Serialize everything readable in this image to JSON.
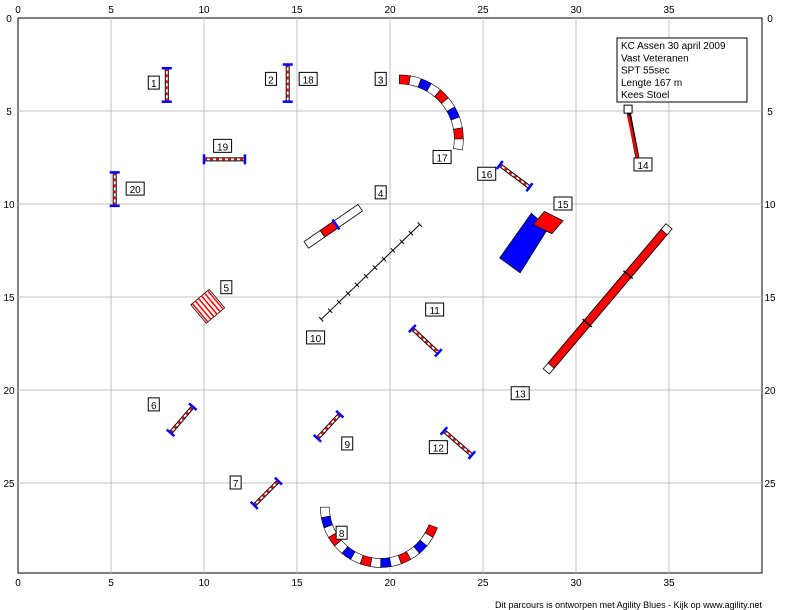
{
  "info": {
    "lines": [
      "KC Assen 30 april 2009",
      "Vast Veteranen",
      "SPT 55sec",
      "Lengte 167 m",
      "Kees Stoel"
    ]
  },
  "footer": "Dit parcours is ontworpen met Agility Blues - Kijk op www.agility.net",
  "axes": {
    "x_ticks": [
      "0",
      "5",
      "10",
      "15",
      "20",
      "25",
      "30",
      "35"
    ],
    "y_ticks": [
      "0",
      "5",
      "10",
      "15",
      "20",
      "25"
    ]
  },
  "colors": {
    "red": "#ff0000",
    "blue": "#0000ff",
    "grid": "#c0c0c0"
  },
  "obstacles": [
    {
      "label": "1",
      "type": "hurdle",
      "x1": 8.0,
      "y1": 2.7,
      "x2": 8.0,
      "y2": 4.5,
      "lx": 7.3,
      "ly": 3.5
    },
    {
      "label": "2",
      "type": "hurdle",
      "x1": 14.5,
      "y1": 2.5,
      "x2": 14.5,
      "y2": 4.5,
      "lx": 13.6,
      "ly": 3.3
    },
    {
      "label": "18",
      "type": "label",
      "lx": 15.6,
      "ly": 3.3
    },
    {
      "label": "3",
      "type": "tunnel",
      "cx": 20.5,
      "cy": 6.5,
      "r": 3.2,
      "a1": -90,
      "a2": 5,
      "lx": 19.5,
      "ly": 3.3
    },
    {
      "label": "17",
      "type": "label",
      "lx": 22.8,
      "ly": 7.5
    },
    {
      "label": "4",
      "type": "teeter",
      "x1": 15.5,
      "y1": 12.2,
      "x2": 18.4,
      "y2": 10.2,
      "lx": 19.5,
      "ly": 9.4
    },
    {
      "label": "5",
      "type": "weave",
      "cx": 10.2,
      "cy": 15.5,
      "lx": 11.2,
      "ly": 14.5
    },
    {
      "label": "6",
      "type": "hurdle",
      "x1": 8.2,
      "y1": 22.3,
      "x2": 9.4,
      "y2": 20.9,
      "lx": 7.3,
      "ly": 20.8
    },
    {
      "label": "7",
      "type": "hurdle",
      "x1": 12.7,
      "y1": 26.2,
      "x2": 14.0,
      "y2": 24.9,
      "lx": 11.7,
      "ly": 25.0
    },
    {
      "label": "8",
      "type": "tunnel",
      "cx": 19.5,
      "cy": 26.3,
      "r": 3.0,
      "a1": 20,
      "a2": 175,
      "lx": 17.4,
      "ly": 27.7
    },
    {
      "label": "9",
      "type": "hurdle",
      "x1": 16.1,
      "y1": 22.6,
      "x2": 17.3,
      "y2": 21.3,
      "lx": 17.7,
      "ly": 22.9
    },
    {
      "label": "10",
      "type": "weavepoles",
      "x1": 16.3,
      "y1": 16.2,
      "x2": 21.6,
      "y2": 11.1,
      "lx": 16.0,
      "ly": 17.2
    },
    {
      "label": "11",
      "type": "hurdle",
      "x1": 21.2,
      "y1": 16.7,
      "x2": 22.6,
      "y2": 18.0,
      "lx": 22.4,
      "ly": 15.7
    },
    {
      "label": "12",
      "type": "hurdle",
      "x1": 22.9,
      "y1": 22.2,
      "x2": 24.4,
      "y2": 23.5,
      "lx": 22.6,
      "ly": 23.1
    },
    {
      "label": "13",
      "type": "dogwalk",
      "x1": 28.4,
      "y1": 19.0,
      "x2": 35.0,
      "y2": 11.2,
      "lx": 27.0,
      "ly": 20.2
    },
    {
      "label": "14",
      "type": "tire",
      "x1": 32.8,
      "y1": 4.9,
      "x2": 33.3,
      "y2": 7.5,
      "lx": 33.6,
      "ly": 7.9
    },
    {
      "label": "15",
      "type": "chute",
      "lx": 29.3,
      "ly": 10.0
    },
    {
      "label": "16",
      "type": "hurdle",
      "x1": 25.9,
      "y1": 7.9,
      "x2": 27.5,
      "y2": 9.1,
      "lx": 25.2,
      "ly": 8.4
    },
    {
      "label": "19",
      "type": "hurdle",
      "x1": 10.0,
      "y1": 7.6,
      "x2": 12.2,
      "y2": 7.6,
      "lx": 11.0,
      "ly": 6.9
    },
    {
      "label": "20",
      "type": "hurdle",
      "x1": 5.2,
      "y1": 8.3,
      "x2": 5.2,
      "y2": 10.1,
      "lx": 6.3,
      "ly": 9.2
    }
  ]
}
